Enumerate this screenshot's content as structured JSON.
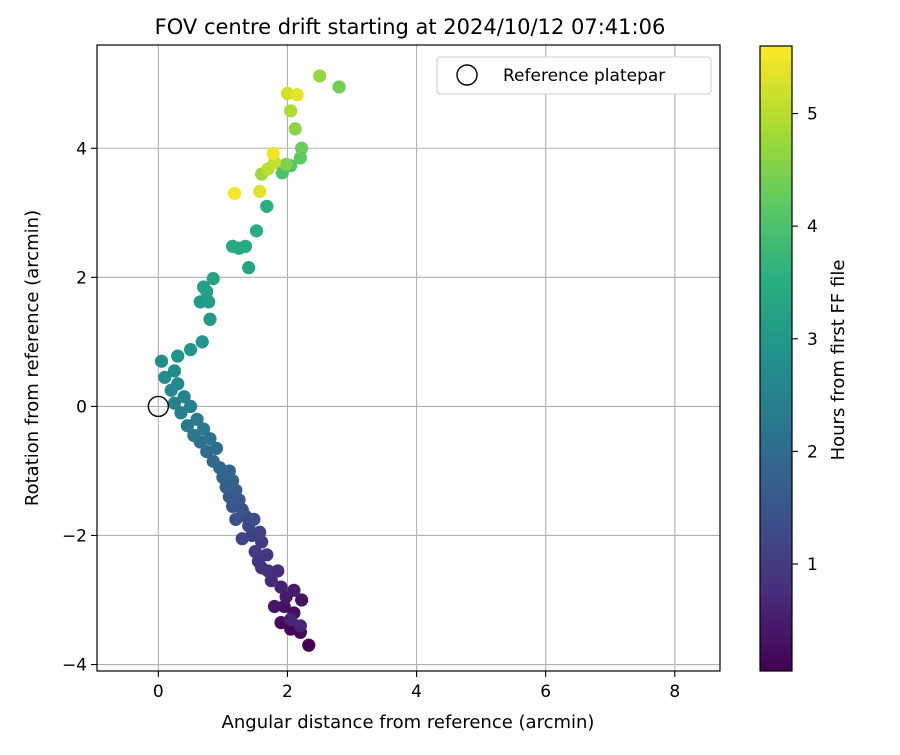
{
  "chart_data": {
    "type": "scatter",
    "title": "FOV centre drift starting at 2024/10/12 07:41:06",
    "xlabel": "Angular distance from reference (arcmin)",
    "ylabel": "Rotation from reference (arcmin)",
    "xlim": [
      -0.95,
      8.7
    ],
    "ylim": [
      -4.1,
      5.6
    ],
    "xticks": [
      0,
      2,
      4,
      6,
      8
    ],
    "yticks": [
      -4,
      -2,
      0,
      2,
      4
    ],
    "xtick_labels": [
      "0",
      "2",
      "4",
      "6",
      "8"
    ],
    "ytick_labels": [
      "−4",
      "−2",
      "0",
      "2",
      "4"
    ],
    "grid": true,
    "legend": {
      "position": "top-right",
      "entries": [
        "Reference platepar"
      ]
    },
    "reference_point": {
      "x": 0,
      "y": 0
    },
    "colorbar": {
      "label": "Hours from first FF file",
      "range": [
        0.05,
        5.6
      ],
      "ticks": [
        1,
        2,
        3,
        4,
        5
      ],
      "tick_labels": [
        "1",
        "2",
        "3",
        "4",
        "5"
      ],
      "colormap": "viridis"
    },
    "series": [
      {
        "points": [
          {
            "x": 2.33,
            "y": -3.7,
            "c": 0.05
          },
          {
            "x": 2.2,
            "y": -3.5,
            "c": 0.1
          },
          {
            "x": 2.05,
            "y": -3.45,
            "c": 0.15
          },
          {
            "x": 1.9,
            "y": -3.35,
            "c": 0.2
          },
          {
            "x": 2.1,
            "y": -3.2,
            "c": 0.25
          },
          {
            "x": 1.95,
            "y": -3.1,
            "c": 0.3
          },
          {
            "x": 2.22,
            "y": -3.0,
            "c": 0.35
          },
          {
            "x": 1.8,
            "y": -3.1,
            "c": 0.4
          },
          {
            "x": 1.98,
            "y": -2.95,
            "c": 0.45
          },
          {
            "x": 2.1,
            "y": -2.85,
            "c": 0.5
          },
          {
            "x": 1.9,
            "y": -2.8,
            "c": 0.55
          },
          {
            "x": 2.05,
            "y": -3.3,
            "c": 0.6
          },
          {
            "x": 2.2,
            "y": -3.4,
            "c": 0.65
          },
          {
            "x": 1.75,
            "y": -2.7,
            "c": 0.7
          },
          {
            "x": 1.85,
            "y": -2.55,
            "c": 0.75
          },
          {
            "x": 1.7,
            "y": -2.55,
            "c": 0.8
          },
          {
            "x": 1.6,
            "y": -2.5,
            "c": 0.85
          },
          {
            "x": 1.55,
            "y": -2.4,
            "c": 0.9
          },
          {
            "x": 1.68,
            "y": -2.3,
            "c": 0.95
          },
          {
            "x": 1.5,
            "y": -2.25,
            "c": 1.0
          },
          {
            "x": 1.6,
            "y": -2.1,
            "c": 1.05
          },
          {
            "x": 1.45,
            "y": -2.0,
            "c": 1.1
          },
          {
            "x": 1.57,
            "y": -1.95,
            "c": 1.15
          },
          {
            "x": 1.3,
            "y": -2.05,
            "c": 1.2
          },
          {
            "x": 1.4,
            "y": -1.85,
            "c": 1.25
          },
          {
            "x": 1.35,
            "y": -1.7,
            "c": 1.3
          },
          {
            "x": 1.48,
            "y": -1.75,
            "c": 1.35
          },
          {
            "x": 1.2,
            "y": -1.75,
            "c": 1.4
          },
          {
            "x": 1.3,
            "y": -1.6,
            "c": 1.45
          },
          {
            "x": 1.15,
            "y": -1.55,
            "c": 1.5
          },
          {
            "x": 1.25,
            "y": -1.45,
            "c": 1.55
          },
          {
            "x": 1.1,
            "y": -1.4,
            "c": 1.6
          },
          {
            "x": 1.2,
            "y": -1.3,
            "c": 1.65
          },
          {
            "x": 1.05,
            "y": -1.25,
            "c": 1.7
          },
          {
            "x": 1.15,
            "y": -1.15,
            "c": 1.75
          },
          {
            "x": 1.0,
            "y": -1.1,
            "c": 1.8
          },
          {
            "x": 1.1,
            "y": -1.0,
            "c": 1.85
          },
          {
            "x": 0.95,
            "y": -0.95,
            "c": 1.9
          },
          {
            "x": 0.85,
            "y": -0.85,
            "c": 1.95
          },
          {
            "x": 0.75,
            "y": -0.7,
            "c": 2.0
          },
          {
            "x": 0.9,
            "y": -0.65,
            "c": 2.05
          },
          {
            "x": 0.65,
            "y": -0.55,
            "c": 2.1
          },
          {
            "x": 0.8,
            "y": -0.5,
            "c": 2.15
          },
          {
            "x": 0.55,
            "y": -0.45,
            "c": 2.2
          },
          {
            "x": 0.7,
            "y": -0.35,
            "c": 2.25
          },
          {
            "x": 0.45,
            "y": -0.3,
            "c": 2.3
          },
          {
            "x": 0.6,
            "y": -0.2,
            "c": 2.35
          },
          {
            "x": 0.35,
            "y": -0.1,
            "c": 2.4
          },
          {
            "x": 0.5,
            "y": 0.0,
            "c": 2.45
          },
          {
            "x": 0.25,
            "y": 0.05,
            "c": 2.5
          },
          {
            "x": 0.4,
            "y": 0.15,
            "c": 2.55
          },
          {
            "x": 0.2,
            "y": 0.25,
            "c": 2.6
          },
          {
            "x": 0.3,
            "y": 0.35,
            "c": 2.65
          },
          {
            "x": 0.1,
            "y": 0.45,
            "c": 2.7
          },
          {
            "x": 0.25,
            "y": 0.55,
            "c": 2.75
          },
          {
            "x": 0.05,
            "y": 0.7,
            "c": 2.8
          },
          {
            "x": 0.3,
            "y": 0.78,
            "c": 2.85
          },
          {
            "x": 0.5,
            "y": 0.88,
            "c": 2.9
          },
          {
            "x": 0.68,
            "y": 1.0,
            "c": 2.95
          },
          {
            "x": 0.8,
            "y": 1.35,
            "c": 3.0
          },
          {
            "x": 0.65,
            "y": 1.62,
            "c": 3.05
          },
          {
            "x": 0.78,
            "y": 1.62,
            "c": 3.1
          },
          {
            "x": 0.75,
            "y": 1.78,
            "c": 3.15
          },
          {
            "x": 0.7,
            "y": 1.85,
            "c": 3.2
          },
          {
            "x": 0.85,
            "y": 1.98,
            "c": 3.25
          },
          {
            "x": 1.4,
            "y": 2.15,
            "c": 3.3
          },
          {
            "x": 1.25,
            "y": 2.45,
            "c": 3.35
          },
          {
            "x": 1.15,
            "y": 2.48,
            "c": 3.4
          },
          {
            "x": 1.35,
            "y": 2.48,
            "c": 3.45
          },
          {
            "x": 1.52,
            "y": 2.72,
            "c": 3.5
          },
          {
            "x": 1.68,
            "y": 3.1,
            "c": 3.55
          },
          {
            "x": 1.92,
            "y": 3.62,
            "c": 4.0
          },
          {
            "x": 2.05,
            "y": 3.73,
            "c": 4.1
          },
          {
            "x": 2.2,
            "y": 3.85,
            "c": 4.2
          },
          {
            "x": 2.22,
            "y": 4.0,
            "c": 4.3
          },
          {
            "x": 2.8,
            "y": 4.95,
            "c": 4.4
          },
          {
            "x": 1.98,
            "y": 3.75,
            "c": 4.5
          },
          {
            "x": 2.12,
            "y": 4.3,
            "c": 4.6
          },
          {
            "x": 2.5,
            "y": 5.12,
            "c": 4.7
          },
          {
            "x": 1.6,
            "y": 3.6,
            "c": 4.8
          },
          {
            "x": 2.05,
            "y": 4.58,
            "c": 4.9
          },
          {
            "x": 1.7,
            "y": 3.68,
            "c": 5.0
          },
          {
            "x": 1.8,
            "y": 3.78,
            "c": 5.1
          },
          {
            "x": 2.0,
            "y": 4.85,
            "c": 5.2
          },
          {
            "x": 1.57,
            "y": 3.33,
            "c": 5.35
          },
          {
            "x": 2.15,
            "y": 4.83,
            "c": 5.4
          },
          {
            "x": 1.78,
            "y": 3.92,
            "c": 5.5
          },
          {
            "x": 1.18,
            "y": 3.3,
            "c": 5.55
          }
        ]
      }
    ]
  }
}
